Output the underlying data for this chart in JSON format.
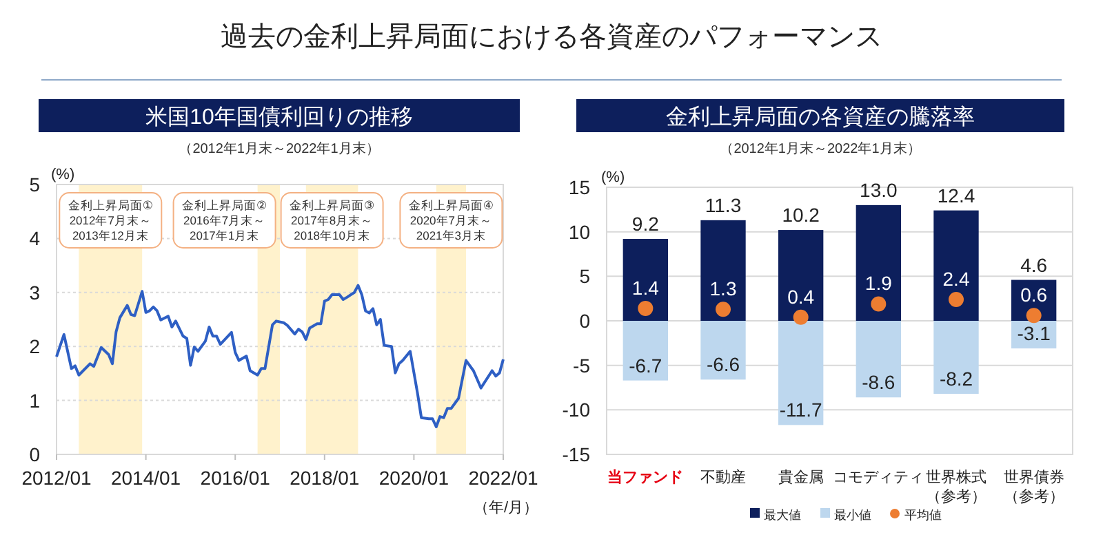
{
  "chart_data": [
    {
      "type": "line",
      "title": "米国10年国債利回りの推移",
      "subtitle": "（2012年1月末～2022年1月末）",
      "xlabel": "（年/月）",
      "ylabel": "(%)",
      "annotations": [
        "過去の金利上昇局面における各資産のパフォーマンス"
      ],
      "x": [
        "2012-01",
        "2012-03",
        "2012-05",
        "2012-06",
        "2012-07",
        "2012-10",
        "2012-11",
        "2013-01",
        "2013-03",
        "2013-04",
        "2013-05",
        "2013-06",
        "2013-08",
        "2013-09",
        "2013-10",
        "2013-12",
        "2014-01",
        "2014-02",
        "2014-03",
        "2014-04",
        "2014-05",
        "2014-07",
        "2014-08",
        "2014-09",
        "2014-11",
        "2014-12",
        "2015-01",
        "2015-02",
        "2015-03",
        "2015-05",
        "2015-06",
        "2015-07",
        "2015-08",
        "2015-09",
        "2015-12",
        "2016-01",
        "2016-02",
        "2016-04",
        "2016-05",
        "2016-07",
        "2016-08",
        "2016-09",
        "2016-11",
        "2016-12",
        "2017-02",
        "2017-03",
        "2017-05",
        "2017-06",
        "2017-07",
        "2017-08",
        "2017-09",
        "2017-11",
        "2017-12",
        "2018-01",
        "2018-02",
        "2018-03",
        "2018-05",
        "2018-06",
        "2018-07",
        "2018-09",
        "2018-10",
        "2018-11",
        "2018-12",
        "2019-01",
        "2019-02",
        "2019-03",
        "2019-04",
        "2019-05",
        "2019-07",
        "2019-08",
        "2019-09",
        "2019-10",
        "2019-12",
        "2020-02",
        "2020-03",
        "2020-05",
        "2020-06",
        "2020-07",
        "2020-08",
        "2020-09",
        "2020-10",
        "2020-11",
        "2021-01",
        "2021-03",
        "2021-05",
        "2021-07",
        "2021-10",
        "2021-11",
        "2021-12",
        "2022-01"
      ],
      "series": [
        {
          "color": "#2e5fc4",
          "values": [
            1.81,
            2.22,
            1.59,
            1.64,
            1.47,
            1.68,
            1.63,
            1.98,
            1.85,
            1.68,
            2.27,
            2.53,
            2.76,
            2.59,
            2.57,
            3.02,
            2.63,
            2.66,
            2.73,
            2.66,
            2.49,
            2.56,
            2.36,
            2.47,
            2.19,
            2.15,
            1.65,
            1.99,
            1.91,
            2.1,
            2.36,
            2.19,
            2.19,
            2.04,
            2.26,
            1.89,
            1.74,
            1.82,
            1.55,
            1.47,
            1.59,
            1.59,
            2.4,
            2.47,
            2.44,
            2.39,
            2.23,
            2.32,
            2.27,
            2.13,
            2.34,
            2.42,
            2.42,
            2.84,
            2.87,
            2.96,
            2.96,
            2.87,
            2.91,
            3.0,
            3.13,
            2.96,
            2.66,
            2.62,
            2.7,
            2.4,
            2.5,
            2.02,
            2.0,
            1.51,
            1.68,
            1.74,
            1.91,
            1.12,
            0.68,
            0.66,
            0.66,
            0.51,
            0.7,
            0.68,
            0.85,
            0.85,
            1.04,
            1.74,
            1.55,
            1.23,
            1.55,
            1.45,
            1.51,
            1.76
          ]
        }
      ],
      "xlim": [
        "2012-01",
        "2022-01"
      ],
      "xticks": [
        {
          "value": "2012-01",
          "label": "2012/01"
        },
        {
          "value": "2014-01",
          "label": "2014/01"
        },
        {
          "value": "2016-01",
          "label": "2016/01"
        },
        {
          "value": "2018-01",
          "label": "2018/01"
        },
        {
          "value": "2020-01",
          "label": "2020/01"
        },
        {
          "value": "2022-01",
          "label": "2022/01"
        }
      ],
      "ylim": [
        0,
        5
      ],
      "yticks": [
        0,
        1,
        2,
        3,
        4,
        5
      ],
      "grid": "y",
      "marker": "none",
      "line_style": "solid",
      "bands": [
        {
          "axis": "x",
          "from": "2012-07",
          "to": "2013-12",
          "color": "#fff2cc",
          "label": "金利上昇局面①\n2012年7月末～\n2013年12月末"
        },
        {
          "axis": "x",
          "from": "2016-07",
          "to": "2017-01",
          "color": "#fff2cc",
          "label": "金利上昇局面②\n2016年7月末～\n2017年1月末"
        },
        {
          "axis": "x",
          "from": "2017-08",
          "to": "2018-10",
          "color": "#fff2cc",
          "label": "金利上昇局面③\n2017年8月末～\n2018年10月末"
        },
        {
          "axis": "x",
          "from": "2020-07",
          "to": "2021-03",
          "color": "#fff2cc",
          "label": "金利上昇局面④\n2020年7月末～\n2021年3月末"
        }
      ]
    },
    {
      "type": "bar",
      "title": "金利上昇局面の各資産の騰落率",
      "subtitle": "（2012年1月末～2022年1月末）",
      "ylabel": "(%)",
      "categories": [
        "当ファンド",
        "不動産",
        "貴金属",
        "コモディティ",
        "世界株式（参考）",
        "世界債券（参考）"
      ],
      "stacked": true,
      "series": [
        {
          "name": "最大値",
          "color": "#0d1f5c",
          "values": [
            9.2,
            11.3,
            10.2,
            13.0,
            12.4,
            4.6
          ],
          "value_labels": [
            "9.2",
            "11.3",
            "10.2",
            "13.0",
            "12.4",
            "4.6"
          ]
        },
        {
          "name": "最小値",
          "color": "#bdd7ee",
          "values": [
            -6.7,
            -6.6,
            -11.7,
            -8.6,
            -8.2,
            -3.1
          ],
          "value_labels": [
            "-6.7",
            "-6.6",
            "-11.7",
            "-8.6",
            "-8.2",
            "-3.1"
          ]
        },
        {
          "name": "平均値",
          "type": "scatter",
          "color": "#ed7d31",
          "values": [
            1.4,
            1.3,
            0.4,
            1.9,
            2.4,
            0.6
          ],
          "value_labels": [
            "1.4",
            "1.3",
            "0.4",
            "1.9",
            "2.4",
            "0.6"
          ]
        }
      ],
      "ylim": [
        -15,
        15
      ],
      "yticks": [
        -15,
        -10,
        -5,
        0,
        5,
        10,
        15
      ],
      "grid": "y",
      "legend": "bottom",
      "marker": "circle"
    }
  ]
}
